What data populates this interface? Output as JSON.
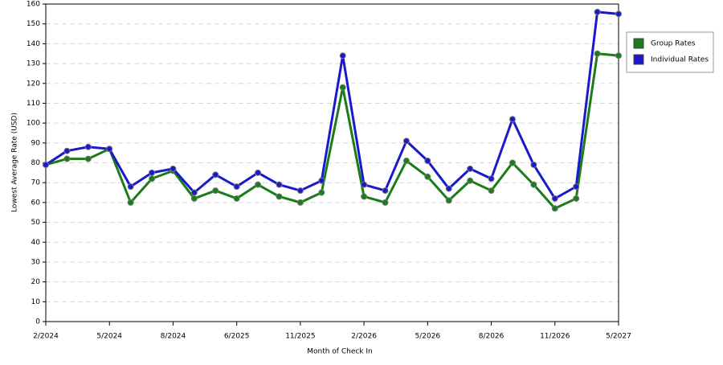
{
  "chart_data": {
    "type": "line",
    "x_label": "Month of Check In",
    "y_label": "Lowest Average Rate (USD)",
    "categories": [
      "2/2024",
      null,
      null,
      "5/2024",
      null,
      null,
      "8/2024",
      null,
      null,
      "6/2025",
      null,
      null,
      "11/2025",
      null,
      null,
      "2/2026",
      null,
      null,
      "5/2026",
      null,
      null,
      "8/2026",
      null,
      null,
      "11/2026",
      null,
      null,
      "5/2027"
    ],
    "series": [
      {
        "name": "Group Rates",
        "color": "#1a7d1a",
        "values": [
          79,
          82,
          82,
          87,
          60,
          72,
          76,
          62,
          66,
          62,
          69,
          63,
          60,
          65,
          118,
          63,
          60,
          81,
          73,
          61,
          71,
          66,
          80,
          69,
          57,
          62,
          135,
          134
        ]
      },
      {
        "name": "Individual Rates",
        "color": "#1a1acc",
        "values": [
          79,
          86,
          88,
          87,
          68,
          75,
          77,
          65,
          74,
          68,
          75,
          69,
          66,
          71,
          134,
          69,
          66,
          91,
          81,
          67,
          77,
          72,
          102,
          79,
          62,
          68,
          156,
          155
        ]
      }
    ],
    "ylim": [
      0,
      160
    ],
    "yticks": [
      0,
      10,
      20,
      30,
      40,
      50,
      60,
      70,
      80,
      90,
      100,
      110,
      120,
      130,
      140,
      150,
      160
    ],
    "grid": true,
    "legend": "right"
  }
}
